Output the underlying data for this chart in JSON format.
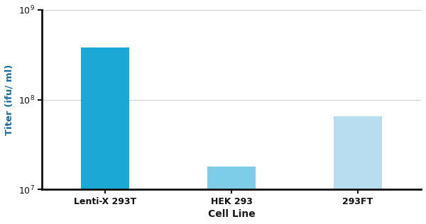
{
  "categories": [
    "Lenti-X 293T",
    "HEK 293",
    "293FT"
  ],
  "values": [
    380000000.0,
    18000000.0,
    65000000.0
  ],
  "bar_colors": [
    "#1BA8D5",
    "#7ECDE8",
    "#B8DCF0"
  ],
  "ylabel": "Titer (ifu/ ml)",
  "xlabel": "Cell Line",
  "ylim_log": [
    10000000.0,
    1000000000.0
  ],
  "yticks": [
    10000000.0,
    100000000.0,
    1000000000.0
  ],
  "background_color": "#ffffff",
  "grid_color": "#cccccc",
  "bar_width": 0.38,
  "ylabel_color": "#1A6FA0",
  "xlabel_color": "#1A1A1A",
  "spine_color": "#111111",
  "tick_label_color": "#111111"
}
